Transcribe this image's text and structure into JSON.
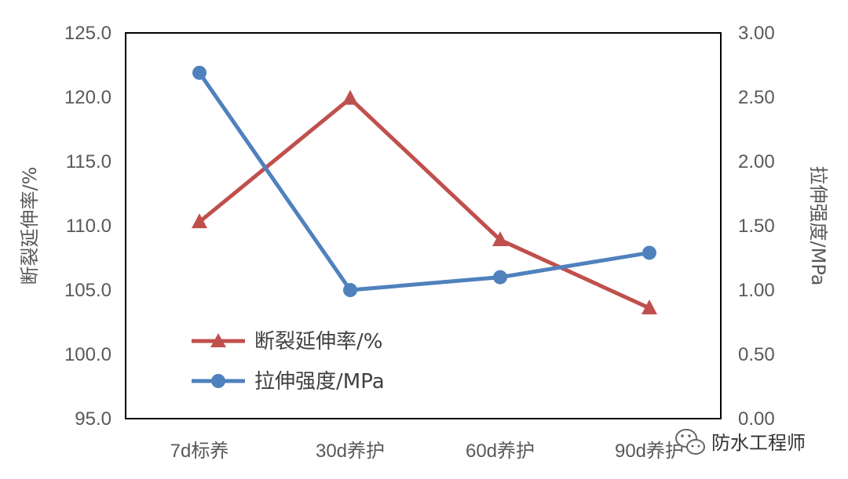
{
  "chart_data": {
    "type": "line",
    "categories": [
      "7d标养",
      "30d养护",
      "60d养护",
      "90d养护"
    ],
    "series": [
      {
        "name": "断裂延伸率/%",
        "axis": "left",
        "marker": "triangle",
        "color": "#c0504d",
        "values": [
          110.3,
          119.9,
          108.9,
          103.6
        ]
      },
      {
        "name": "拉伸强度/MPa",
        "axis": "right",
        "marker": "circle",
        "color": "#4f81bd",
        "values": [
          2.69,
          1.0,
          1.1,
          1.29
        ]
      }
    ],
    "y_left": {
      "label": "断裂延伸率/%",
      "range": [
        95.0,
        125.0
      ],
      "ticks": [
        "95.0",
        "100.0",
        "105.0",
        "110.0",
        "115.0",
        "120.0",
        "125.0"
      ]
    },
    "y_right": {
      "label": "拉伸强度/MPa",
      "range": [
        0.0,
        3.0
      ],
      "ticks": [
        "0.00",
        "0.50",
        "1.00",
        "1.50",
        "2.00",
        "2.50",
        "3.00"
      ]
    },
    "grid": false,
    "legend_position": "bottom-left inside plot"
  },
  "watermark": {
    "text": "防水工程师",
    "icon": "wechat-icon"
  }
}
